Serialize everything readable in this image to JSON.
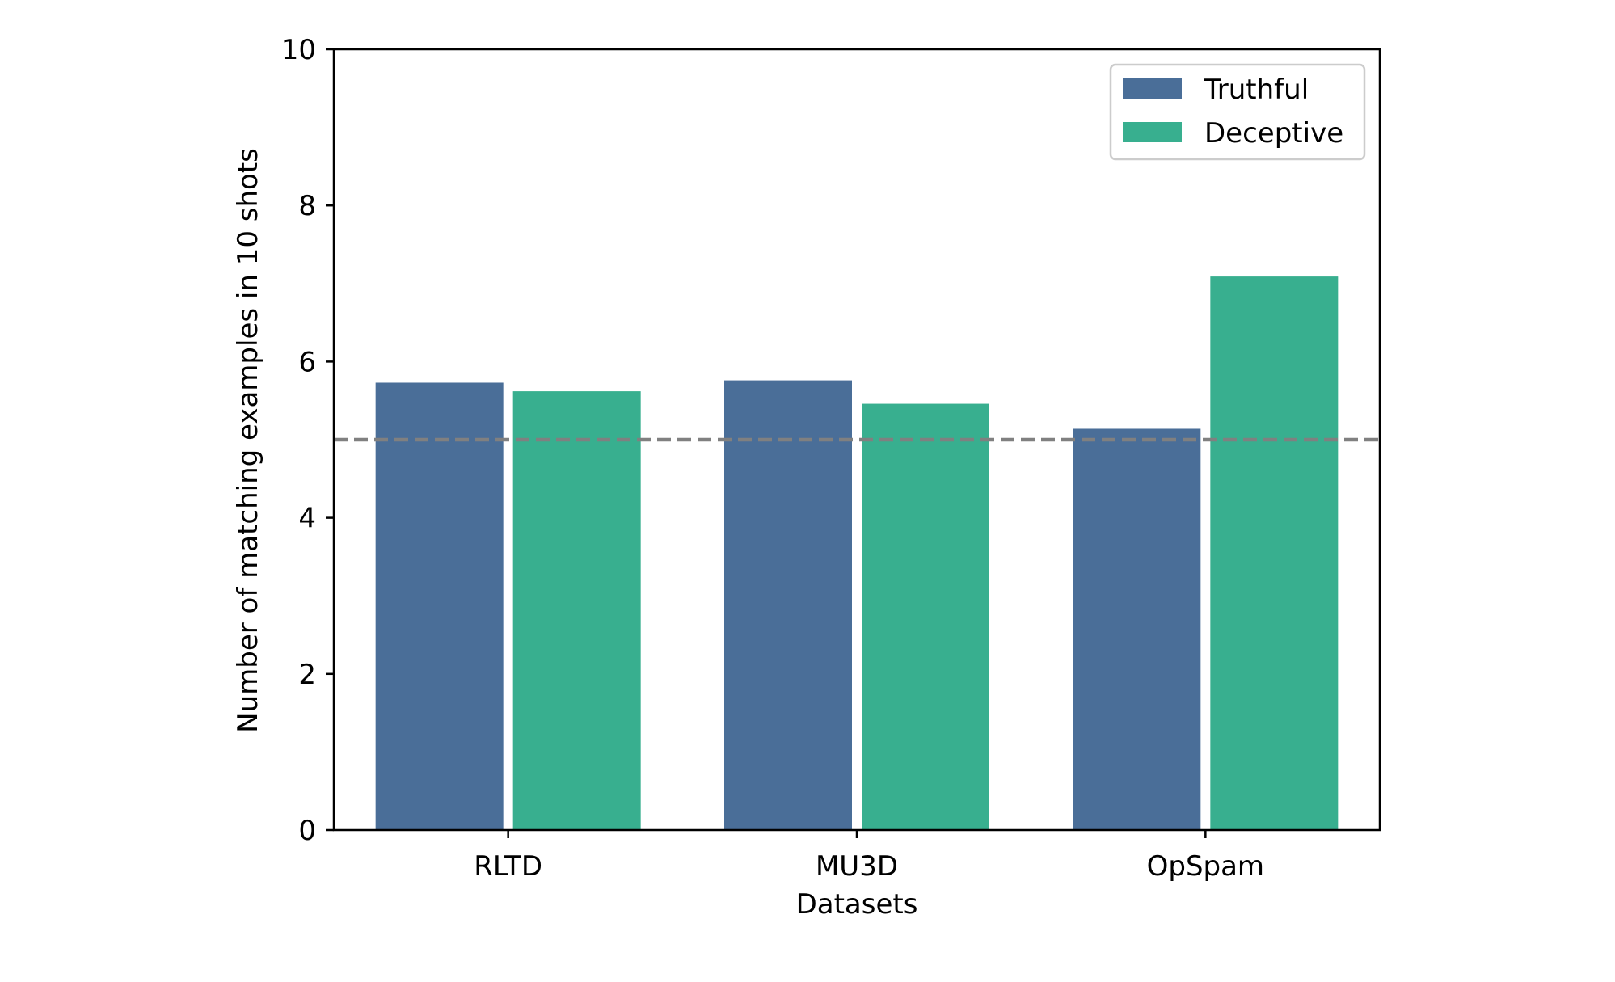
{
  "chart_data": {
    "type": "bar",
    "xlabel": "Datasets",
    "ylabel": "Number of matching examples in 10 shots",
    "categories": [
      "RLTD",
      "MU3D",
      "OpSpam"
    ],
    "series": [
      {
        "name": "Truthful",
        "values": [
          5.73,
          5.76,
          5.14
        ],
        "color": "#4a6e98"
      },
      {
        "name": "Deceptive",
        "values": [
          5.62,
          5.46,
          7.09
        ],
        "color": "#38af8f"
      }
    ],
    "ylim": [
      0,
      10
    ],
    "yticks": [
      "0",
      "2",
      "4",
      "6",
      "8",
      "10"
    ],
    "reference_line": {
      "y": 5,
      "style": "dashed",
      "color": "#808080"
    },
    "legend_position": "top-right",
    "grid": false
  }
}
